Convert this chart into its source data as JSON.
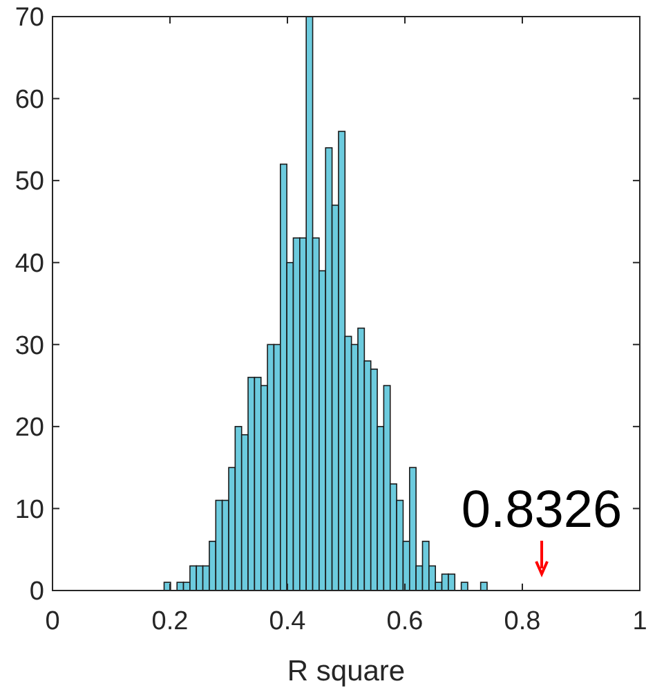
{
  "chart_data": {
    "type": "histogram",
    "xlabel": "R square",
    "bins": [
      0.19,
      0.201,
      0.212,
      0.223,
      0.234,
      0.245,
      0.256,
      0.267,
      0.278,
      0.289,
      0.3,
      0.311,
      0.322,
      0.333,
      0.344,
      0.355,
      0.366,
      0.377,
      0.388,
      0.399,
      0.41,
      0.421,
      0.432,
      0.443,
      0.454,
      0.465,
      0.476,
      0.487,
      0.498,
      0.509,
      0.52,
      0.531,
      0.542,
      0.553,
      0.564,
      0.575,
      0.586,
      0.597,
      0.608,
      0.619,
      0.63,
      0.641,
      0.652,
      0.663,
      0.674,
      0.685,
      0.696,
      0.707,
      0.718,
      0.729,
      0.74
    ],
    "values": [
      1,
      0,
      1,
      1,
      3,
      3,
      3,
      6,
      11,
      11,
      15,
      20,
      19,
      26,
      26,
      25,
      30,
      30,
      52,
      40,
      43,
      43,
      70,
      43,
      39,
      54,
      47,
      56,
      31,
      30,
      32,
      28,
      27,
      20,
      25,
      13,
      11,
      6,
      15,
      3,
      6,
      3,
      1,
      2,
      2,
      0,
      1,
      0,
      0,
      1
    ],
    "color": "#6ccbde",
    "xlim": [
      0,
      1
    ],
    "xticks": [
      0,
      0.2,
      0.4,
      0.6,
      0.8,
      1
    ],
    "ylim": [
      0,
      70
    ],
    "yticks": [
      0,
      10,
      20,
      30,
      40,
      50,
      60,
      70
    ],
    "annotations": [
      "0.8326"
    ]
  }
}
